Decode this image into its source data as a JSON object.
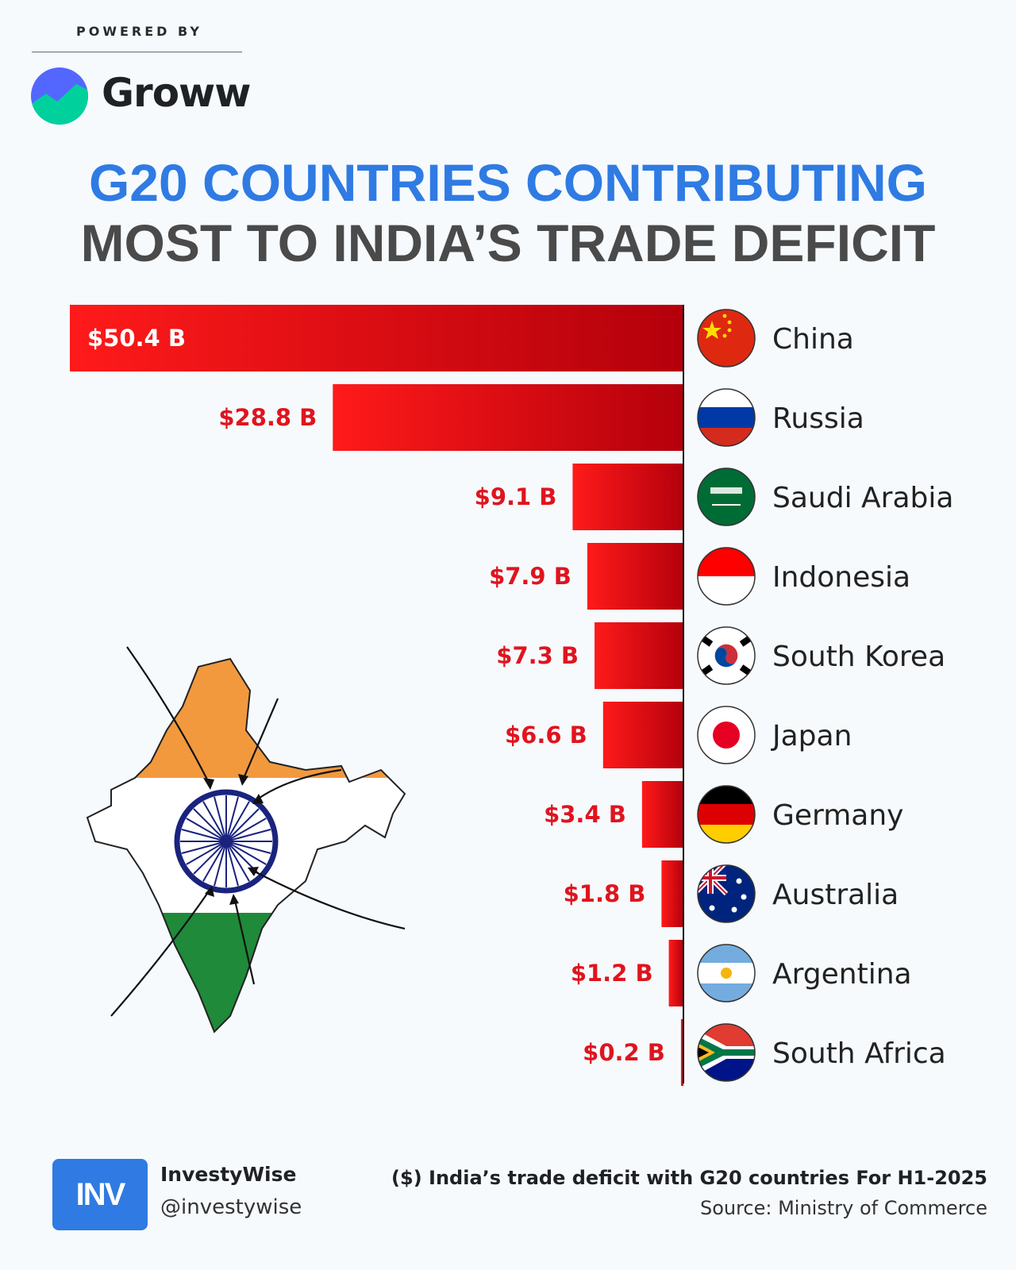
{
  "header": {
    "powered_by": "POWERED BY",
    "brand": "Groww"
  },
  "title": {
    "line1": "G20 COUNTRIES CONTRIBUTING",
    "line2": "MOST TO INDIA’S TRADE DEFICIT"
  },
  "chart_data": {
    "type": "bar",
    "orientation": "horizontal",
    "categories": [
      "China",
      "Russia",
      "Saudi Arabia",
      "Indonesia",
      "South Korea",
      "Japan",
      "Germany",
      "Australia",
      "Argentina",
      "South Africa"
    ],
    "values": [
      50.4,
      28.8,
      9.1,
      7.9,
      7.3,
      6.6,
      3.4,
      1.8,
      1.2,
      0.2
    ],
    "labels": [
      "$50.4 B",
      "$28.8 B",
      "$9.1 B",
      "$7.9 B",
      "$7.3 B",
      "$6.6 B",
      "$3.4 B",
      "$1.8 B",
      "$1.2 B",
      "$0.2 B"
    ],
    "unit": "$ B",
    "title": "G20 COUNTRIES CONTRIBUTING MOST TO INDIA’S TRADE DEFICIT",
    "xlabel": "",
    "ylabel": "",
    "grid": false,
    "legend": "none",
    "bar_color": "#e3000f",
    "label_color": "#e0141e"
  },
  "footer": {
    "logo_text": "INV",
    "account_name": "InvestyWise",
    "handle": "@investywise",
    "note": "($) India’s trade deficit with G20 countries For H1-2025",
    "source": "Source: Ministry of Commerce"
  },
  "colors": {
    "title_blue": "#2f7be3",
    "title_gray": "#4a4a4a",
    "bar_red": "#e3000f",
    "background": "#f6fafd"
  }
}
